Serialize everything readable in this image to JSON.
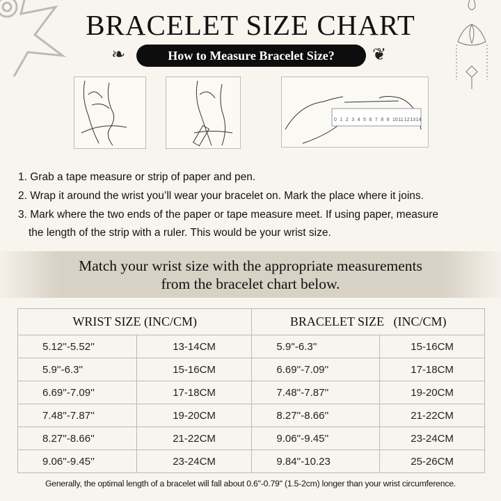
{
  "title": "BRACELET SIZE CHART",
  "subtitle": "How to Measure Bracelet Size?",
  "ruler_labels": [
    "0",
    "1",
    "2",
    "3",
    "4",
    "5",
    "6",
    "7",
    "8",
    "9",
    "10",
    "11",
    "12",
    "13",
    "14"
  ],
  "steps": [
    "1. Grab a tape measure or strip of paper and pen.",
    "2. Wrap it around the wrist you’ll wear your bracelet on. Mark the place where it joins.",
    "3. Mark where the two ends of the paper or tape measure meet. If using paper, measure",
    "the length of the strip with a ruler. This would be your wrist size."
  ],
  "banner": {
    "line1": "Match your wrist size with the appropriate measurements",
    "line2": "from the bracelet chart below."
  },
  "table": {
    "headers": [
      "WRIST SIZE (INC/CM)",
      "BRACELET SIZE   (INC/CM)"
    ],
    "rows": [
      [
        "5.12''-5.52''",
        "13-14CM",
        "5.9''-6.3''",
        "15-16CM"
      ],
      [
        "5.9''-6.3''",
        "15-16CM",
        "6.69''-7.09''",
        "17-18CM"
      ],
      [
        "6.69''-7.09''",
        "17-18CM",
        "7.48''-7.87''",
        "19-20CM"
      ],
      [
        "7.48''-7.87''",
        "19-20CM",
        "8.27''-8.66''",
        "21-22CM"
      ],
      [
        "8.27''-8.66''",
        "21-22CM",
        "9.06''-9.45''",
        "23-24CM"
      ],
      [
        "9.06''-9.45''",
        "23-24CM",
        "9.84''-10.23",
        "25-26CM"
      ]
    ]
  },
  "footer": "Generally, the optimal length of a bracelet will fall about 0.6''-0.79'' (1.5-2cm) longer than your wrist circumference.",
  "colors": {
    "background": "#f8f5ef",
    "pill": "#0d0d0d",
    "band": "#d8d1c5",
    "border": "#b9b9b9"
  }
}
